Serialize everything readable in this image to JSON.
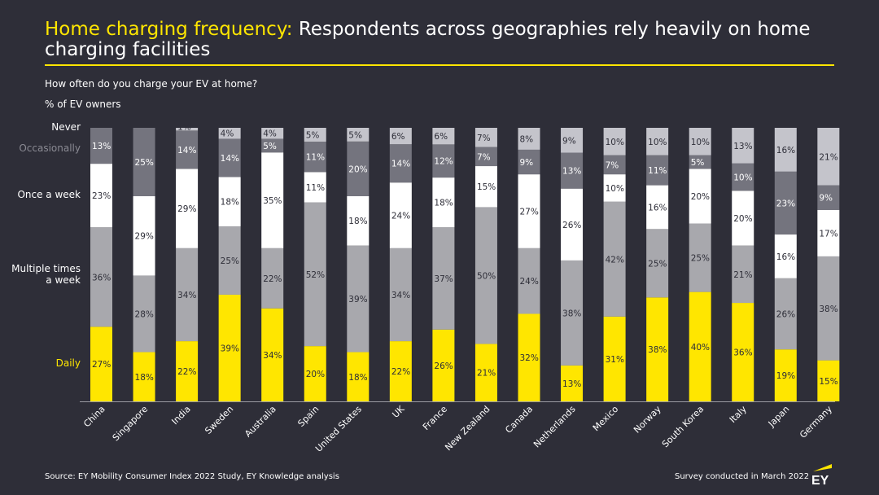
{
  "header": {
    "title_highlight": "Home charging frequency:",
    "title_rest": " Respondents across geographies rely heavily on home charging facilities",
    "question": "How often do you charge your EV at home?",
    "unit": "% of EV owners"
  },
  "footer": {
    "source": "Source: EY Mobility Consumer Index 2022 Study, EY Knowledge analysis",
    "survey_note": "Survey conducted in March 2022",
    "logo_text": "EY"
  },
  "colors": {
    "background": "#2e2e38",
    "accent": "#ffe600",
    "daily": "#ffe600",
    "multiple": "#a8a8ad",
    "once": "#ffffff",
    "occasionally": "#74747e",
    "never": "#c4c4cb"
  },
  "chart_data": {
    "type": "bar",
    "stacked": true,
    "title": "How often do you charge your EV at home?",
    "ylabel": "% of EV owners",
    "ylim": [
      0,
      100
    ],
    "categories": [
      "China",
      "Singapore",
      "India",
      "Sweden",
      "Australia",
      "Spain",
      "United States",
      "UK",
      "France",
      "New Zealand",
      "Canada",
      "Netherlands",
      "Mexico",
      "Norway",
      "South Korea",
      "Italy",
      "Japan",
      "Germany"
    ],
    "series": [
      {
        "name": "Daily",
        "color": "#ffe600",
        "values": [
          27,
          18,
          22,
          39,
          34,
          20,
          18,
          22,
          26,
          21,
          32,
          13,
          31,
          38,
          40,
          36,
          19,
          15
        ]
      },
      {
        "name": "Multiple times a week",
        "color": "#a8a8ad",
        "values": [
          36,
          28,
          34,
          25,
          22,
          52,
          39,
          34,
          37,
          50,
          24,
          38,
          42,
          25,
          25,
          21,
          26,
          38
        ]
      },
      {
        "name": "Once a week",
        "color": "#ffffff",
        "values": [
          23,
          29,
          29,
          18,
          35,
          11,
          18,
          24,
          18,
          15,
          27,
          26,
          10,
          16,
          20,
          20,
          16,
          17
        ]
      },
      {
        "name": "Occasionally",
        "color": "#74747e",
        "values": [
          13,
          25,
          14,
          14,
          5,
          11,
          20,
          14,
          12,
          7,
          9,
          13,
          7,
          11,
          5,
          10,
          23,
          9
        ]
      },
      {
        "name": "Never",
        "color": "#c4c4cb",
        "values": [
          0,
          0,
          1,
          4,
          4,
          5,
          5,
          6,
          6,
          7,
          8,
          9,
          10,
          10,
          10,
          13,
          16,
          21
        ]
      }
    ],
    "legend_labels": [
      "Daily",
      "Multiple times a week",
      "Once a week",
      "Occasionally",
      "Never"
    ]
  }
}
